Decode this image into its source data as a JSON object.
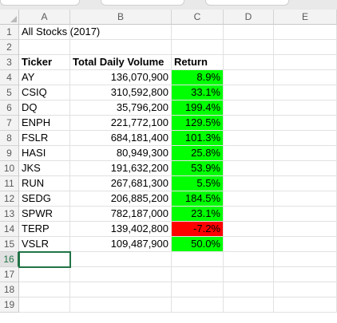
{
  "columns": [
    "A",
    "B",
    "C",
    "D",
    "E"
  ],
  "rows": [
    "1",
    "2",
    "3",
    "4",
    "5",
    "6",
    "7",
    "8",
    "9",
    "10",
    "11",
    "12",
    "13",
    "14",
    "15",
    "16",
    "17",
    "18",
    "19"
  ],
  "title": "All Stocks (2017)",
  "headers": {
    "ticker": "Ticker",
    "volume": "Total Daily Volume",
    "return": "Return"
  },
  "stocks": [
    {
      "ticker": "AY",
      "volume": "136,070,900",
      "return": "8.9%",
      "status": "positive"
    },
    {
      "ticker": "CSIQ",
      "volume": "310,592,800",
      "return": "33.1%",
      "status": "positive"
    },
    {
      "ticker": "DQ",
      "volume": "35,796,200",
      "return": "199.4%",
      "status": "positive"
    },
    {
      "ticker": "ENPH",
      "volume": "221,772,100",
      "return": "129.5%",
      "status": "positive"
    },
    {
      "ticker": "FSLR",
      "volume": "684,181,400",
      "return": "101.3%",
      "status": "positive"
    },
    {
      "ticker": "HASI",
      "volume": "80,949,300",
      "return": "25.8%",
      "status": "positive"
    },
    {
      "ticker": "JKS",
      "volume": "191,632,200",
      "return": "53.9%",
      "status": "positive"
    },
    {
      "ticker": "RUN",
      "volume": "267,681,300",
      "return": "5.5%",
      "status": "positive"
    },
    {
      "ticker": "SEDG",
      "volume": "206,885,200",
      "return": "184.5%",
      "status": "positive"
    },
    {
      "ticker": "SPWR",
      "volume": "782,187,000",
      "return": "23.1%",
      "status": "positive"
    },
    {
      "ticker": "TERP",
      "volume": "139,402,800",
      "return": "-7.2%",
      "status": "negative"
    },
    {
      "ticker": "VSLR",
      "volume": "109,487,900",
      "return": "50.0%",
      "status": "positive"
    }
  ],
  "colors": {
    "positive": "#00ff00",
    "negative": "#ff0000",
    "selection": "#217346"
  },
  "active_row": "16"
}
